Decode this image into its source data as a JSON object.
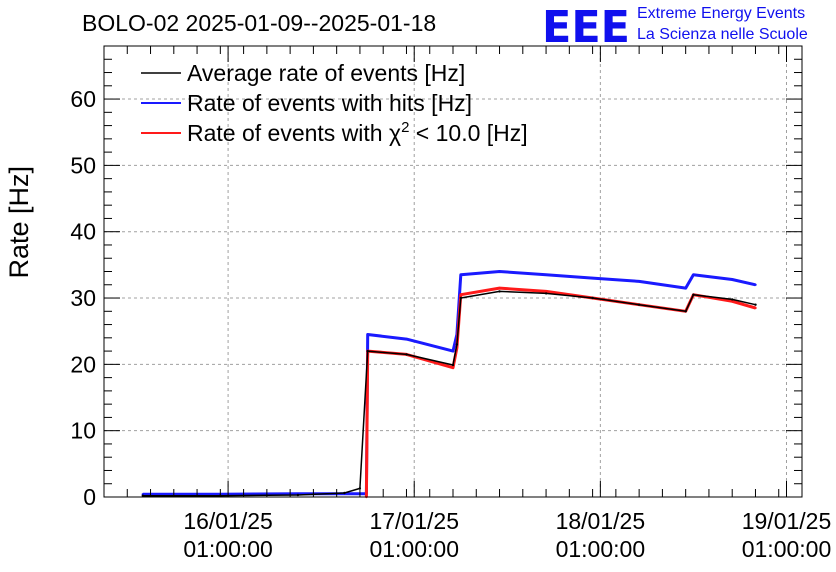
{
  "header": {
    "title": "BOLO-02 2025-01-09--2025-01-18",
    "logo_text": "EEE",
    "tagline_1": "Extreme Energy Events",
    "tagline_2": "La Scienza nelle Scuole"
  },
  "colors": {
    "avg": "#000000",
    "hits": "#1a1aff",
    "chi2": "#ff1a1a",
    "grid": "#a0a0a0",
    "logo": "#1010ee"
  },
  "chart_data": {
    "type": "line",
    "title": "BOLO-02 2025-01-09--2025-01-18",
    "xlabel": "",
    "ylabel": "Rate [Hz]",
    "ylim": [
      0,
      68
    ],
    "xlim": [
      "2025-01-15 09:00",
      "2025-01-19 03:00"
    ],
    "grid": true,
    "legend_position": "top-left",
    "yticks": [
      0,
      10,
      20,
      30,
      40,
      50,
      60
    ],
    "xticks": [
      {
        "x": "2025-01-16 01:00",
        "line1": "16/01/25",
        "line2": "01:00:00"
      },
      {
        "x": "2025-01-17 01:00",
        "line1": "17/01/25",
        "line2": "01:00:00"
      },
      {
        "x": "2025-01-18 01:00",
        "line1": "18/01/25",
        "line2": "01:00:00"
      },
      {
        "x": "2025-01-19 01:00",
        "line1": "19/01/25",
        "line2": "01:00:00"
      }
    ],
    "series": [
      {
        "name": "Average rate of events [Hz]",
        "color": "#000000",
        "legend_label": "Average rate of events [Hz]",
        "x": [
          "2025-01-15 14:00",
          "2025-01-16 00:00",
          "2025-01-16 10:00",
          "2025-01-16 16:00",
          "2025-01-16 18:00",
          "2025-01-16 19:00",
          "2025-01-17 00:00",
          "2025-01-17 06:00",
          "2025-01-17 06:30",
          "2025-01-17 07:00",
          "2025-01-17 12:00",
          "2025-01-17 18:00",
          "2025-01-18 00:00",
          "2025-01-18 06:00",
          "2025-01-18 12:00",
          "2025-01-18 13:00",
          "2025-01-18 18:00",
          "2025-01-18 21:00"
        ],
        "y": [
          0.2,
          0.2,
          0.3,
          0.6,
          1.3,
          22.0,
          21.5,
          19.9,
          23.0,
          30.0,
          31.0,
          30.7,
          30.0,
          29.0,
          28.0,
          30.5,
          29.8,
          29.0
        ]
      },
      {
        "name": "Rate of events with hits [Hz]",
        "color": "#1a1aff",
        "legend_label": "Rate of events with hits [Hz]",
        "x": [
          "2025-01-15 14:00",
          "2025-01-16 00:00",
          "2025-01-16 10:00",
          "2025-01-16 18:50",
          "2025-01-16 19:00",
          "2025-01-17 00:00",
          "2025-01-17 06:00",
          "2025-01-17 06:30",
          "2025-01-17 07:00",
          "2025-01-17 12:00",
          "2025-01-17 18:00",
          "2025-01-18 00:00",
          "2025-01-18 06:00",
          "2025-01-18 12:00",
          "2025-01-18 13:00",
          "2025-01-18 18:00",
          "2025-01-18 21:00"
        ],
        "y": [
          0.4,
          0.4,
          0.5,
          0.5,
          24.5,
          23.8,
          22.0,
          24.5,
          33.5,
          34.0,
          33.5,
          33.0,
          32.5,
          31.5,
          33.5,
          32.8,
          32.0
        ]
      },
      {
        "name": "Rate of events with χ² < 10.0 [Hz]",
        "color": "#ff1a1a",
        "legend_label": "Rate of events with",
        "legend_chi": "χ",
        "legend_sup": "2",
        "legend_rest": " < 10.0 [Hz]",
        "x": [
          "2025-01-16 18:50",
          "2025-01-16 19:00",
          "2025-01-17 00:00",
          "2025-01-17 06:00",
          "2025-01-17 06:30",
          "2025-01-17 07:00",
          "2025-01-17 12:00",
          "2025-01-17 18:00",
          "2025-01-18 00:00",
          "2025-01-18 06:00",
          "2025-01-18 12:00",
          "2025-01-18 13:00",
          "2025-01-18 18:00",
          "2025-01-18 21:00"
        ],
        "y": [
          0.0,
          22.0,
          21.5,
          19.5,
          22.5,
          30.5,
          31.5,
          31.0,
          30.0,
          29.0,
          28.0,
          30.5,
          29.5,
          28.5
        ]
      }
    ]
  }
}
